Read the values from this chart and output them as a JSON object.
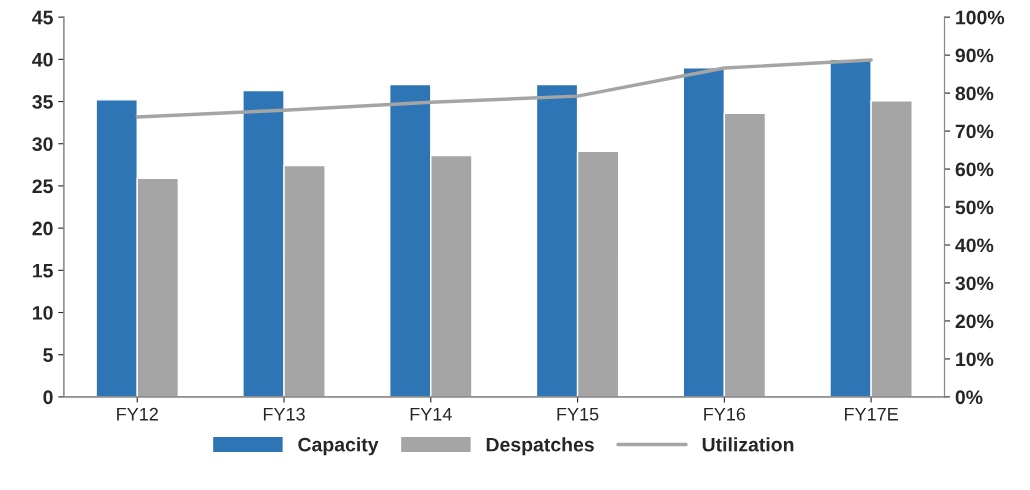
{
  "chart_data": {
    "type": "bar",
    "categories": [
      "FY12",
      "FY13",
      "FY14",
      "FY15",
      "FY16",
      "FY17E"
    ],
    "series": [
      {
        "name": "Capacity",
        "color": "#2e75b6",
        "values": [
          35.2,
          36.3,
          37,
          37,
          39,
          40
        ]
      },
      {
        "name": "Despatches",
        "color": "#a5a5a5",
        "values": [
          25.9,
          27.4,
          28.6,
          29.1,
          33.6,
          35.1
        ]
      },
      {
        "name": "Utilization",
        "type": "line",
        "axis": "y2",
        "color": "#a5a5a5",
        "values": [
          73.7,
          75.5,
          77.6,
          79.2,
          86.6,
          88.7
        ]
      }
    ],
    "ylim": [
      0,
      45
    ],
    "yticks": [
      0,
      5,
      10,
      15,
      20,
      25,
      30,
      35,
      40,
      45
    ],
    "y2lim": [
      0,
      100
    ],
    "y2ticks": [
      {
        "value": 0,
        "label": "0%"
      },
      {
        "value": 10,
        "label": "10%"
      },
      {
        "value": 20,
        "label": "20%"
      },
      {
        "value": 30,
        "label": "30%"
      },
      {
        "value": 40,
        "label": "40%"
      },
      {
        "value": 50,
        "label": "50%"
      },
      {
        "value": 60,
        "label": "60%"
      },
      {
        "value": 70,
        "label": "70%"
      },
      {
        "value": 80,
        "label": "80%"
      },
      {
        "value": 90,
        "label": "90%"
      },
      {
        "value": 100,
        "label": "100%"
      }
    ],
    "grid": false,
    "legend": "bottom",
    "marker": "none",
    "line_style": "solid"
  }
}
